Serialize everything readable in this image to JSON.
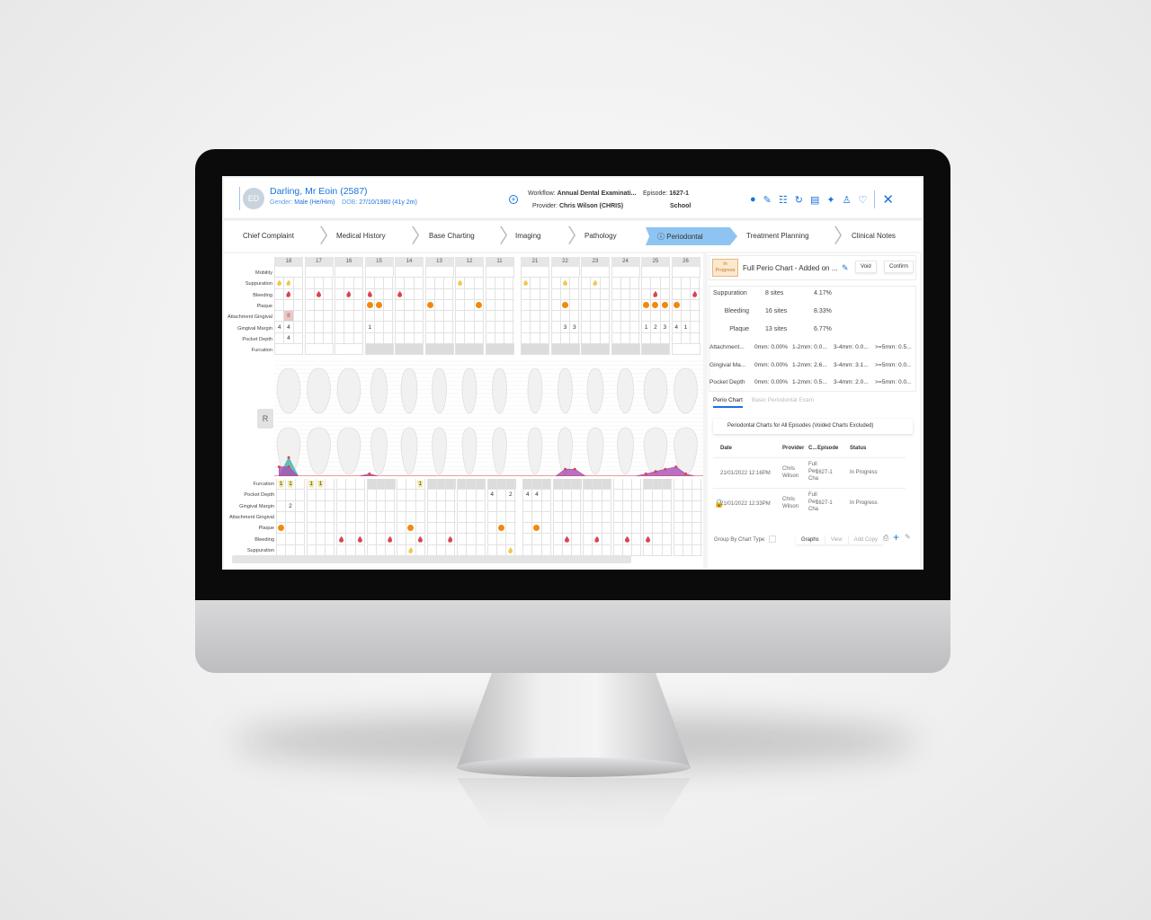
{
  "patient": {
    "initials": "ED",
    "name": "Darling, Mr Eoin (2587)",
    "gender_label": "Gender:",
    "gender": "Male (He/Him)",
    "dob_label": "DOB:",
    "dob": "27/10/1980 (41y 2m)"
  },
  "workflow": {
    "workflow_label": "Workflow:",
    "workflow": "Annual Dental Examinati...",
    "provider_label": "Provider:",
    "provider": "Chris Wilson (CHRIS)",
    "episode_label": "Episode:",
    "episode": "1627-1",
    "location": "School"
  },
  "header_icons": [
    "user-icon",
    "notes-icon",
    "clipboard-icon",
    "refresh-icon",
    "document-icon",
    "walking-person-icon",
    "person-badge-icon",
    "handshake-icon",
    "close-icon"
  ],
  "tabs": [
    "Chief Complaint",
    "Medical History",
    "Base Charting",
    "Imaging",
    "Pathology",
    "Periodontal",
    "Treatment Planning",
    "Clinical Notes"
  ],
  "active_tab": "Periodontal",
  "accent": "#1a73d9",
  "upper_grid": {
    "teeth": [
      "18",
      "17",
      "16",
      "15",
      "14",
      "13",
      "12",
      "11",
      "21",
      "22",
      "23",
      "24",
      "25",
      "26"
    ],
    "rows": [
      {
        "label": "Mobility",
        "type": "full",
        "shaded": [
          false,
          false,
          false,
          false,
          false,
          false,
          false,
          false,
          false,
          false,
          false,
          false,
          false,
          false
        ]
      },
      {
        "label": "Suppuration",
        "type": "sites",
        "values": [
          [
            "S",
            "S",
            ""
          ],
          [
            "",
            "",
            ""
          ],
          [
            "",
            "",
            ""
          ],
          [
            "",
            "",
            ""
          ],
          [
            "",
            "",
            ""
          ],
          [
            "",
            "",
            ""
          ],
          [
            "S",
            "",
            ""
          ],
          [
            "",
            "",
            ""
          ],
          [
            "S",
            "",
            ""
          ],
          [
            "",
            "S",
            ""
          ],
          [
            "",
            "S",
            ""
          ],
          [
            "",
            "",
            ""
          ],
          [
            "",
            "",
            ""
          ],
          [
            "",
            "",
            ""
          ]
        ]
      },
      {
        "label": "Bleeding",
        "type": "sites",
        "values": [
          [
            "",
            "B",
            ""
          ],
          [
            "",
            "B",
            ""
          ],
          [
            "",
            "B",
            ""
          ],
          [
            "B",
            "",
            ""
          ],
          [
            "B",
            "",
            ""
          ],
          [
            "",
            "",
            ""
          ],
          [
            "",
            "",
            ""
          ],
          [
            "",
            "",
            ""
          ],
          [
            "",
            "",
            ""
          ],
          [
            "",
            "",
            ""
          ],
          [
            "",
            "",
            ""
          ],
          [
            "",
            "",
            ""
          ],
          [
            "",
            "B",
            ""
          ],
          [
            "",
            "",
            "B"
          ]
        ]
      },
      {
        "label": "Plaque",
        "type": "sites",
        "values": [
          [
            "",
            "",
            ""
          ],
          [
            "",
            "",
            ""
          ],
          [
            "",
            "",
            ""
          ],
          [
            "P",
            "P",
            ""
          ],
          [
            "",
            "",
            ""
          ],
          [
            "P",
            "",
            ""
          ],
          [
            "",
            "",
            "P"
          ],
          [
            "",
            "",
            ""
          ],
          [
            "",
            "",
            ""
          ],
          [
            "",
            "P",
            ""
          ],
          [
            "",
            "",
            ""
          ],
          [
            "",
            "",
            ""
          ],
          [
            "P",
            "P",
            "P"
          ],
          [
            "P",
            "",
            ""
          ]
        ]
      },
      {
        "label": "Attachment Gingival",
        "type": "sites",
        "values": [
          [
            "",
            "8!",
            ""
          ],
          [
            "",
            "",
            ""
          ],
          [
            "",
            "",
            ""
          ],
          [
            "",
            "",
            ""
          ],
          [
            "",
            "",
            ""
          ],
          [
            "",
            "",
            ""
          ],
          [
            "",
            "",
            ""
          ],
          [
            "",
            "",
            ""
          ],
          [
            "",
            "",
            ""
          ],
          [
            "",
            "",
            ""
          ],
          [
            "",
            "",
            ""
          ],
          [
            "",
            "",
            ""
          ],
          [
            "",
            "",
            ""
          ],
          [
            "",
            "",
            ""
          ]
        ]
      },
      {
        "label": "Gingival Margin",
        "type": "sites",
        "values": [
          [
            "4",
            "4",
            ""
          ],
          [
            "",
            "",
            ""
          ],
          [
            "",
            "",
            ""
          ],
          [
            "1",
            "",
            ""
          ],
          [
            "",
            "",
            ""
          ],
          [
            "",
            "",
            ""
          ],
          [
            "",
            "",
            ""
          ],
          [
            "",
            "",
            ""
          ],
          [
            "",
            "",
            ""
          ],
          [
            "",
            "3",
            "3"
          ],
          [
            "",
            "",
            ""
          ],
          [
            "",
            "",
            ""
          ],
          [
            "1",
            "2",
            "3"
          ],
          [
            "4",
            "1",
            ""
          ]
        ]
      },
      {
        "label": "Pocket Depth",
        "type": "sites",
        "values": [
          [
            "",
            "4",
            ""
          ],
          [
            "",
            "",
            ""
          ],
          [
            "",
            "",
            ""
          ],
          [
            "",
            "",
            ""
          ],
          [
            "",
            "",
            ""
          ],
          [
            "",
            "",
            ""
          ],
          [
            "",
            "",
            ""
          ],
          [
            "",
            "",
            ""
          ],
          [
            "",
            "",
            ""
          ],
          [
            "",
            "",
            ""
          ],
          [
            "",
            "",
            ""
          ],
          [
            "",
            "",
            ""
          ],
          [
            "",
            "",
            ""
          ],
          [
            "",
            "",
            ""
          ]
        ]
      },
      {
        "label": "Furcation",
        "type": "full",
        "shaded": [
          false,
          false,
          false,
          true,
          true,
          true,
          true,
          true,
          true,
          true,
          true,
          true,
          true,
          false
        ]
      }
    ]
  },
  "lower_grid": {
    "rows": [
      {
        "label": "Furcation",
        "type": "sites",
        "shaded": [
          false,
          false,
          false,
          true,
          false,
          true,
          true,
          true,
          true,
          true,
          true,
          false,
          true,
          false
        ],
        "values": [
          [
            "F1",
            "F1",
            ""
          ],
          [
            "F1",
            "F1",
            ""
          ],
          [
            "",
            "",
            ""
          ],
          [
            "",
            "",
            ""
          ],
          [
            "",
            "",
            "F1"
          ],
          [
            "",
            "",
            ""
          ],
          [
            "",
            "",
            ""
          ],
          [
            "",
            "",
            ""
          ],
          [
            "",
            "",
            ""
          ],
          [
            "",
            "",
            ""
          ],
          [
            "",
            "",
            ""
          ],
          [
            "",
            "",
            ""
          ],
          [
            "",
            "",
            ""
          ],
          [
            "",
            "",
            ""
          ]
        ]
      },
      {
        "label": "Pocket Depth",
        "type": "sites",
        "values": [
          [
            "",
            "",
            ""
          ],
          [
            "",
            "",
            ""
          ],
          [
            "",
            "",
            ""
          ],
          [
            "",
            "",
            ""
          ],
          [
            "",
            "",
            ""
          ],
          [
            "",
            "",
            ""
          ],
          [
            "",
            "",
            ""
          ],
          [
            "4",
            "",
            "2"
          ],
          [
            "4",
            "4",
            ""
          ],
          [
            "",
            "",
            ""
          ],
          [
            "",
            "",
            ""
          ],
          [
            "",
            "",
            ""
          ],
          [
            "",
            "",
            ""
          ],
          [
            "",
            "",
            ""
          ]
        ]
      },
      {
        "label": "Gingival Margin",
        "type": "sites",
        "values": [
          [
            "",
            "2",
            ""
          ],
          [
            "",
            "",
            ""
          ],
          [
            "",
            "",
            ""
          ],
          [
            "",
            "",
            ""
          ],
          [
            "",
            "",
            ""
          ],
          [
            "",
            "",
            ""
          ],
          [
            "",
            "",
            ""
          ],
          [
            "",
            "",
            ""
          ],
          [
            "",
            "",
            ""
          ],
          [
            "",
            "",
            ""
          ],
          [
            "",
            "",
            ""
          ],
          [
            "",
            "",
            ""
          ],
          [
            "",
            "",
            ""
          ],
          [
            "",
            "",
            ""
          ]
        ]
      },
      {
        "label": "Attachment Gingival",
        "type": "sites",
        "values": [
          [
            "",
            "",
            ""
          ],
          [
            "",
            "",
            ""
          ],
          [
            "",
            "",
            ""
          ],
          [
            "",
            "",
            ""
          ],
          [
            "",
            "",
            ""
          ],
          [
            "",
            "",
            ""
          ],
          [
            "",
            "",
            ""
          ],
          [
            "",
            "",
            ""
          ],
          [
            "",
            "",
            ""
          ],
          [
            "",
            "",
            ""
          ],
          [
            "",
            "",
            ""
          ],
          [
            "",
            "",
            ""
          ],
          [
            "",
            "",
            ""
          ],
          [
            "",
            "",
            ""
          ]
        ]
      },
      {
        "label": "Plaque",
        "type": "sites",
        "values": [
          [
            "P",
            "",
            ""
          ],
          [
            "",
            "",
            ""
          ],
          [
            "",
            "",
            ""
          ],
          [
            "",
            "",
            ""
          ],
          [
            "",
            "P",
            ""
          ],
          [
            "",
            "",
            ""
          ],
          [
            "",
            "",
            ""
          ],
          [
            "",
            "P",
            ""
          ],
          [
            "",
            "P",
            ""
          ],
          [
            "",
            "",
            ""
          ],
          [
            "",
            "",
            ""
          ],
          [
            "",
            "",
            ""
          ],
          [
            "",
            "",
            ""
          ],
          [
            "",
            "",
            ""
          ]
        ]
      },
      {
        "label": "Bleeding",
        "type": "sites",
        "values": [
          [
            "",
            "",
            ""
          ],
          [
            "",
            "",
            ""
          ],
          [
            "B",
            "",
            "B"
          ],
          [
            "",
            "",
            "B"
          ],
          [
            "",
            "",
            "B"
          ],
          [
            "",
            "",
            "B"
          ],
          [
            "",
            "",
            ""
          ],
          [
            "",
            "",
            ""
          ],
          [
            "",
            "",
            ""
          ],
          [
            "",
            "B",
            ""
          ],
          [
            "",
            "B",
            ""
          ],
          [
            "",
            "B",
            ""
          ],
          [
            "B",
            "",
            ""
          ],
          [
            "",
            "",
            ""
          ]
        ]
      },
      {
        "label": "Suppuration",
        "type": "sites",
        "values": [
          [
            "",
            "",
            ""
          ],
          [
            "",
            "",
            ""
          ],
          [
            "",
            "",
            ""
          ],
          [
            "",
            "",
            ""
          ],
          [
            "",
            "S",
            ""
          ],
          [
            "",
            "",
            ""
          ],
          [
            "",
            "",
            ""
          ],
          [
            "",
            "",
            "S"
          ],
          [
            "",
            "",
            ""
          ],
          [
            "",
            "",
            ""
          ],
          [
            "",
            "",
            ""
          ],
          [
            "",
            "",
            ""
          ],
          [
            "",
            "",
            ""
          ],
          [
            "",
            "",
            ""
          ]
        ]
      }
    ]
  },
  "perio_graph": {
    "side_button": "R",
    "upper_gingival_margin": [
      [
        4,
        4,
        0
      ],
      [
        0,
        0,
        0
      ],
      [
        0,
        0,
        0
      ],
      [
        1,
        0,
        0
      ],
      [
        0,
        0,
        0
      ],
      [
        0,
        0,
        0
      ],
      [
        0,
        0,
        0
      ],
      [
        0,
        0,
        0
      ],
      [
        0,
        0,
        0
      ],
      [
        0,
        3,
        3
      ],
      [
        0,
        0,
        0
      ],
      [
        0,
        0,
        0
      ],
      [
        1,
        2,
        3
      ],
      [
        4,
        1,
        0
      ]
    ],
    "upper_attachment": [
      [
        0,
        8,
        0
      ]
    ],
    "lower_gingival_margin": [
      [
        0,
        2,
        0
      ]
    ],
    "colors": {
      "gingival_margin": "#a64fb6",
      "attachment": "#48b5b0",
      "baseline": "#e0363c"
    }
  },
  "summary_card": {
    "status": "In Progress",
    "title": "Full Perio Chart - Added on ...",
    "void": "Void",
    "confirm": "Confirm"
  },
  "stats": [
    {
      "label": "Suppuration",
      "sites": "8 sites",
      "pct": "4.17%"
    },
    {
      "label": "Bleeding",
      "sites": "16 sites",
      "pct": "8.33%"
    },
    {
      "label": "Plaque",
      "sites": "13 sites",
      "pct": "6.77%"
    }
  ],
  "distribution": [
    {
      "label": "Attachment...",
      "c0": "0mm: 0.00%",
      "c1": "1-2mm: 0.0...",
      "c2": "3-4mm: 0.0...",
      "c3": ">=5mm: 0.5..."
    },
    {
      "label": "Gingival Ma...",
      "c0": "0mm: 0.00%",
      "c1": "1-2mm: 2.6...",
      "c2": "3-4mm: 3.1...",
      "c3": ">=5mm: 0.0..."
    },
    {
      "label": "Pocket Depth",
      "c0": "0mm: 0.00%",
      "c1": "1-2mm: 0.5...",
      "c2": "3-4mm: 2.0...",
      "c3": ">=5mm: 0.0..."
    }
  ],
  "sub_tabs": [
    "Perio Chart",
    "Basic Periodontal Exam"
  ],
  "charts_heading": "Periodontal Charts for All Episodes (Voided Charts Excluded)",
  "table": {
    "headers": [
      "Date",
      "Provider",
      "C...",
      "Episode",
      "Status"
    ],
    "rows": [
      {
        "locked": false,
        "date": "21/01/2022 12:16PM",
        "provider": "Chris Wilson",
        "chart": "Full Peri Cha",
        "episode": "1627-1",
        "status": "In Progress"
      },
      {
        "locked": true,
        "date": "21/01/2022 12:33PM",
        "provider": "Chris Wilson",
        "chart": "Full Peri Cha",
        "episode": "1627-1",
        "status": "In Progress"
      }
    ]
  },
  "footer": {
    "group_by": "Group By Chart Type",
    "graphs": "Graphs",
    "view": "View",
    "add_copy": "Add Copy"
  }
}
